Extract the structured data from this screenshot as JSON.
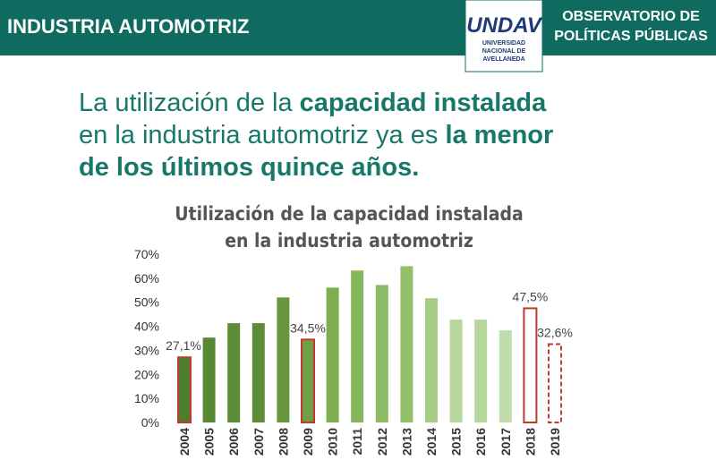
{
  "header": {
    "section": "INDUSTRIA AUTOMOTRIZ",
    "logo": {
      "name": "UNDAV",
      "lines": [
        "UNIVERSIDAD",
        "NACIONAL DE",
        "AVELLANEDA"
      ]
    },
    "observatory": [
      "OBSERVATORIO DE",
      "POLÍTICAS PÚBLICAS"
    ]
  },
  "headline": [
    [
      {
        "text": "La utilización de la ",
        "bold": false
      },
      {
        "text": "capacidad instalada",
        "bold": true
      }
    ],
    [
      {
        "text": "en la industria automotriz ya es ",
        "bold": false
      },
      {
        "text": "la menor",
        "bold": true
      }
    ],
    [
      {
        "text": "de los últimos quince años.",
        "bold": true
      }
    ]
  ],
  "chart_data": {
    "type": "bar",
    "title": [
      "Utilización de la capacidad instalada",
      "en la industria automotriz"
    ],
    "categories": [
      "2004",
      "2005",
      "2006",
      "2007",
      "2008",
      "2009",
      "2010",
      "2011",
      "2012",
      "2013",
      "2014",
      "2015",
      "2016",
      "2017",
      "2018",
      "2019"
    ],
    "values": [
      27.1,
      35.3,
      41.3,
      41.3,
      52,
      34.5,
      56.1,
      63.2,
      57.2,
      65,
      51.7,
      42.8,
      42.8,
      38.3,
      47.5,
      32.6
    ],
    "value_labels": [
      "27,1%",
      null,
      null,
      null,
      null,
      "34,5%",
      null,
      null,
      null,
      null,
      null,
      null,
      null,
      null,
      "47,5%",
      "32,6%"
    ],
    "colors": [
      "#4e7d2f",
      "#578833",
      "#5c8d38",
      "#5c8d38",
      "#66963d",
      "#6f9f45",
      "#7eae52",
      "#86b65c",
      "#8dbb63",
      "#93c06b",
      "#a7cd87",
      "#b6d69e",
      "#b6d69e",
      "#c1dcab",
      "#ffffff",
      "#ffffff"
    ],
    "edge_colors": [
      "#c0392b",
      null,
      null,
      null,
      null,
      "#c0392b",
      null,
      null,
      null,
      null,
      null,
      null,
      null,
      null,
      "#c0392b",
      "#c0392b"
    ],
    "edge_styles": [
      "solid",
      null,
      null,
      null,
      null,
      "solid",
      null,
      null,
      null,
      null,
      null,
      null,
      null,
      null,
      "solid",
      "dashed"
    ],
    "ylim": [
      0,
      70
    ],
    "yticks": [
      {
        "value": 0,
        "label": "0%"
      },
      {
        "value": 10,
        "label": "10%"
      },
      {
        "value": 20,
        "label": "20%"
      },
      {
        "value": 30,
        "label": "30%"
      },
      {
        "value": 40,
        "label": "40%"
      },
      {
        "value": 50,
        "label": "50%"
      },
      {
        "value": 60,
        "label": "60%"
      },
      {
        "value": 70,
        "label": "70%"
      }
    ]
  }
}
